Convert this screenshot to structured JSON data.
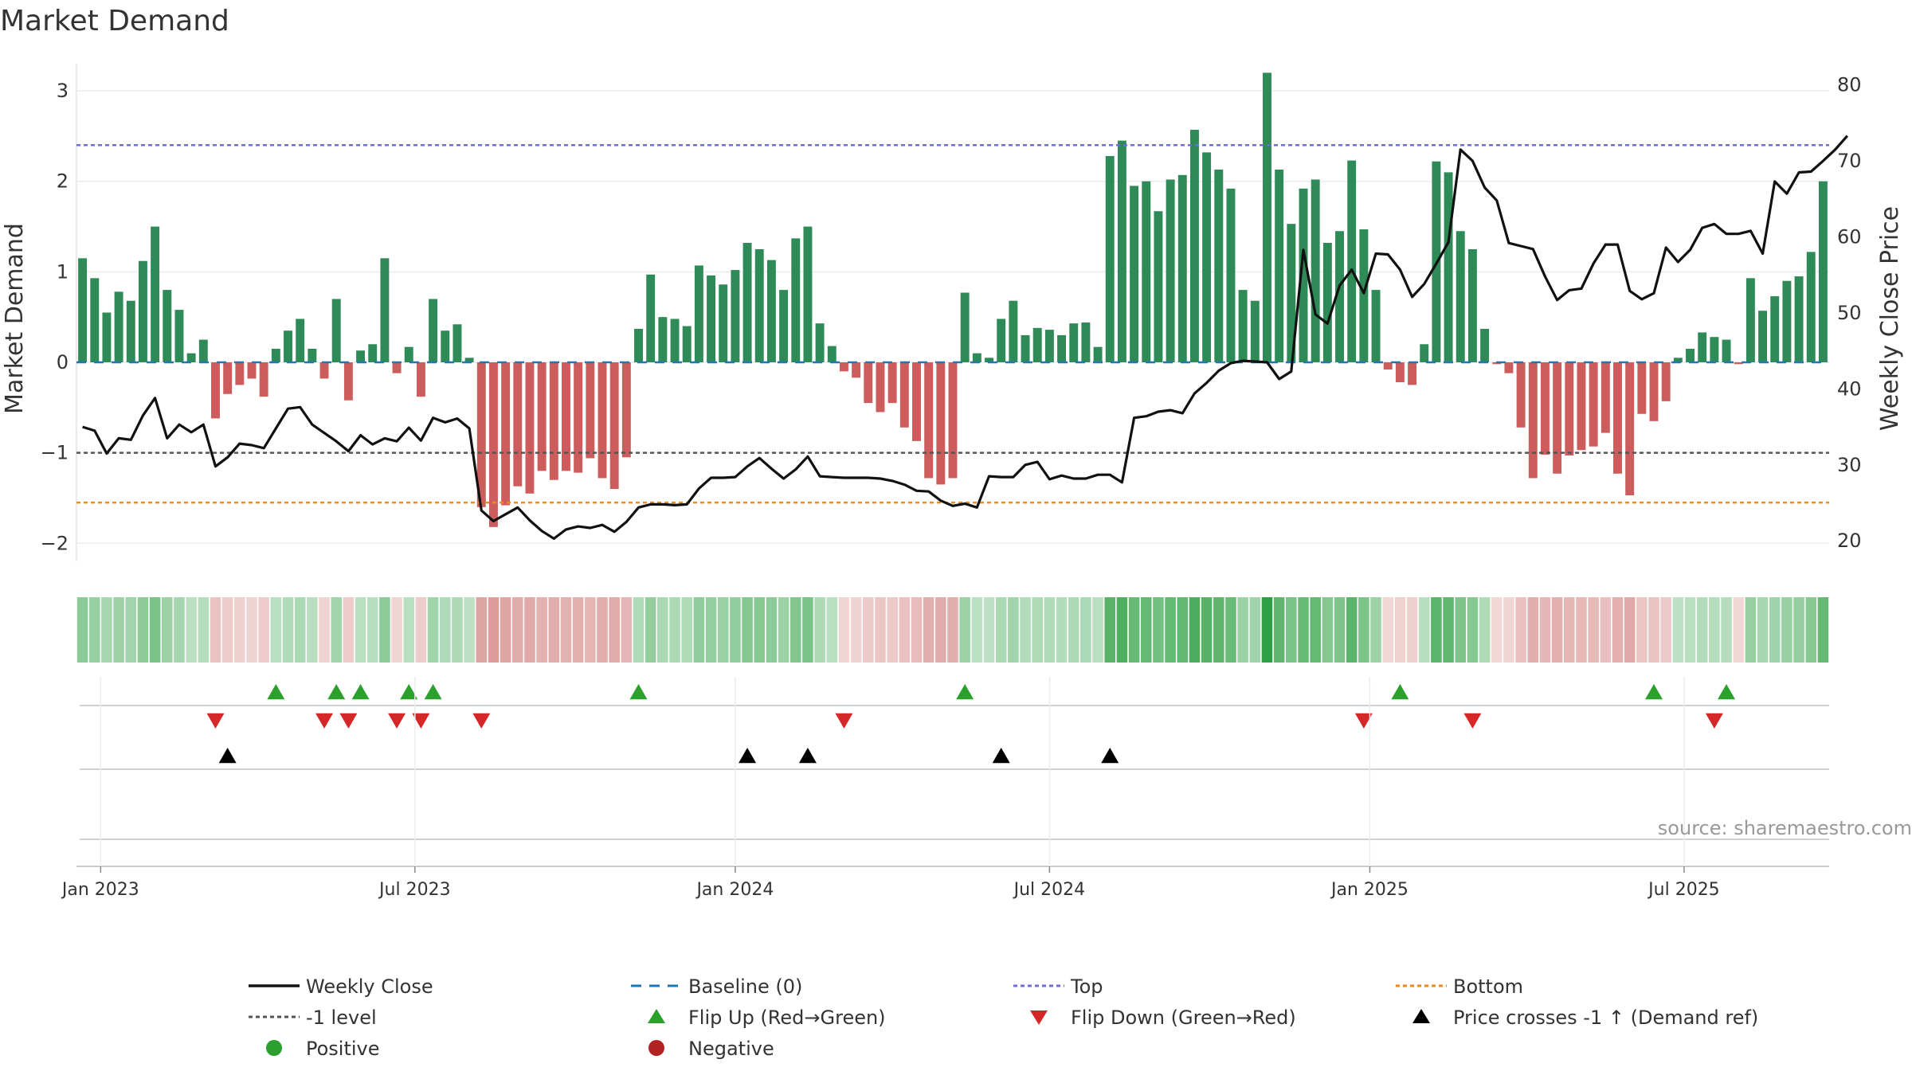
{
  "chart_data": {
    "type": "bar",
    "title": "Market Demand",
    "ylabel_left": "Market Demand",
    "ylabel_right": "Weekly Close Price",
    "y_left_range": [
      -2.2,
      3.3
    ],
    "y_left_ticks": [
      {
        "value": 3,
        "label": "3"
      },
      {
        "value": 2,
        "label": "2"
      },
      {
        "value": 1,
        "label": "1"
      },
      {
        "value": 0,
        "label": "0"
      },
      {
        "value": -1,
        "label": "−1"
      },
      {
        "value": -2,
        "label": "−2"
      }
    ],
    "y_right_range": [
      17.3,
      82.8
    ],
    "y_right_ticks": [
      {
        "value": 80,
        "label": "80"
      },
      {
        "value": 70,
        "label": "70"
      },
      {
        "value": 60,
        "label": "60"
      },
      {
        "value": 50,
        "label": "50"
      },
      {
        "value": 40,
        "label": "40"
      },
      {
        "value": 30,
        "label": "30"
      },
      {
        "value": 20,
        "label": "20"
      }
    ],
    "x_ticks": [
      {
        "week": 2,
        "label": "Jan 2023"
      },
      {
        "week": 28,
        "label": "Jul 2023"
      },
      {
        "week": 54.5,
        "label": "Jan 2024"
      },
      {
        "week": 80.5,
        "label": "Jul 2024"
      },
      {
        "week": 107,
        "label": "Jan 2025"
      },
      {
        "week": 133,
        "label": "Jul 2025"
      }
    ],
    "reference_lines": {
      "baseline": 0,
      "top": 2.4,
      "bottom": -1.55,
      "minus_one_level": -1
    },
    "demand": [
      1.15,
      0.93,
      0.55,
      0.78,
      0.68,
      1.12,
      1.5,
      0.8,
      0.58,
      0.1,
      0.25,
      -0.62,
      -0.35,
      -0.25,
      -0.18,
      -0.38,
      0.15,
      0.35,
      0.48,
      0.15,
      -0.18,
      0.7,
      -0.42,
      0.13,
      0.2,
      1.15,
      -0.12,
      0.17,
      -0.38,
      0.7,
      0.35,
      0.42,
      0.05,
      -1.6,
      -1.82,
      -1.58,
      -1.37,
      -1.45,
      -1.2,
      -1.3,
      -1.2,
      -1.22,
      -1.06,
      -1.28,
      -1.4,
      -1.05,
      0.37,
      0.97,
      0.5,
      0.48,
      0.4,
      1.07,
      0.96,
      0.86,
      1.02,
      1.32,
      1.25,
      1.13,
      0.8,
      1.37,
      1.5,
      0.43,
      0.18,
      -0.1,
      -0.17,
      -0.45,
      -0.55,
      -0.45,
      -0.72,
      -0.87,
      -1.28,
      -1.35,
      -1.28,
      0.77,
      0.1,
      0.05,
      0.48,
      0.68,
      0.3,
      0.38,
      0.36,
      0.3,
      0.43,
      0.44,
      0.17,
      2.28,
      2.45,
      1.95,
      2.0,
      1.67,
      2.02,
      2.07,
      2.57,
      2.32,
      2.13,
      1.92,
      0.8,
      0.68,
      3.2,
      2.13,
      1.53,
      1.92,
      2.02,
      1.32,
      1.45,
      2.23,
      1.47,
      0.8,
      -0.08,
      -0.22,
      -0.25,
      0.2,
      2.22,
      2.1,
      1.45,
      1.25,
      0.37,
      -0.02,
      -0.12,
      -0.72,
      -1.28,
      -1.02,
      -1.23,
      -1.03,
      -0.97,
      -0.93,
      -0.78,
      -1.23,
      -1.47,
      -0.57,
      -0.65,
      -0.43,
      0.05,
      0.15,
      0.33,
      0.28,
      0.25,
      -0.02,
      0.93,
      0.57,
      0.73,
      0.9,
      0.95,
      1.22,
      2.0
    ],
    "price": [
      35,
      34.5,
      31.5,
      33.5,
      33.3,
      36.5,
      38.8,
      33.5,
      35.3,
      34.3,
      35.3,
      29.8,
      31,
      32.8,
      32.6,
      32.2,
      34.8,
      37.4,
      37.6,
      35.3,
      34.2,
      33.1,
      31.8,
      33.9,
      32.7,
      33.5,
      33.1,
      34.9,
      33.2,
      36.2,
      35.6,
      36.1,
      34.8,
      24,
      22.6,
      23.5,
      24.4,
      22.7,
      21.3,
      20.3,
      21.5,
      21.9,
      21.7,
      22.1,
      21.2,
      22.5,
      24.4,
      24.8,
      24.8,
      24.7,
      24.8,
      26.9,
      28.3,
      28.3,
      28.4,
      29.8,
      30.9,
      29.5,
      28.2,
      29.4,
      31.1,
      28.5,
      28.4,
      28.3,
      28.3,
      28.3,
      28.2,
      27.9,
      27.4,
      26.6,
      26.5,
      25.3,
      24.6,
      24.9,
      24.4,
      28.5,
      28.4,
      28.4,
      30,
      30.4,
      28.1,
      28.6,
      28.2,
      28.2,
      28.7,
      28.7,
      27.7,
      36.2,
      36.4,
      37,
      37.2,
      36.8,
      39.4,
      40.8,
      42.4,
      43.4,
      43.7,
      43.6,
      43.5,
      41.3,
      42.3,
      58.3,
      49.8,
      48.6,
      53.6,
      55.7,
      52.6,
      57.8,
      57.7,
      55.7,
      52.1,
      53.8,
      56.5,
      59.3,
      71.5,
      70,
      66.5,
      64.8,
      59.2,
      58.8,
      58.4,
      54.8,
      51.7,
      53,
      53.2,
      56.5,
      59,
      59,
      52.9,
      51.8,
      52.6,
      58.6,
      56.7,
      58.3,
      61.2,
      61.7,
      60.4,
      60.4,
      60.8,
      57.8,
      67.3,
      65.7,
      68.5,
      68.6,
      70,
      71.5,
      73.3
    ],
    "flip_up_weeks": [
      16,
      21,
      23,
      27,
      29,
      46,
      73,
      109,
      130,
      136
    ],
    "flip_down_weeks": [
      11,
      20,
      22,
      26,
      28,
      33,
      63,
      106,
      115,
      135
    ],
    "price_cross_weeks": [
      12,
      55,
      60,
      76,
      85
    ],
    "source": "source: sharemaestro.com",
    "legend": [
      {
        "label": "Weekly Close",
        "symbol": "line-solid",
        "color": "#111111"
      },
      {
        "label": "Baseline (0)",
        "symbol": "line-dash",
        "color": "#1f77b4"
      },
      {
        "label": "Top",
        "symbol": "line-dot",
        "color": "#6c6cd6"
      },
      {
        "label": "Bottom",
        "symbol": "line-dot",
        "color": "#ef8a17"
      },
      {
        "label": "-1 level",
        "symbol": "line-dot",
        "color": "#555555"
      },
      {
        "label": "Flip Up (Red→Green)",
        "symbol": "triangle-up",
        "color": "#2ca02c"
      },
      {
        "label": "Flip Down (Green→Red)",
        "symbol": "triangle-down",
        "color": "#d62728"
      },
      {
        "label": "Price crosses -1 ↑ (Demand ref)",
        "symbol": "triangle-up",
        "color": "#000000"
      },
      {
        "label": "Positive",
        "symbol": "circle",
        "color": "#2ca02c"
      },
      {
        "label": "Negative",
        "symbol": "circle",
        "color": "#b22222"
      }
    ],
    "colors": {
      "positive": "#2e8b57",
      "negative": "#cd5c5c",
      "price": "#111111"
    }
  }
}
